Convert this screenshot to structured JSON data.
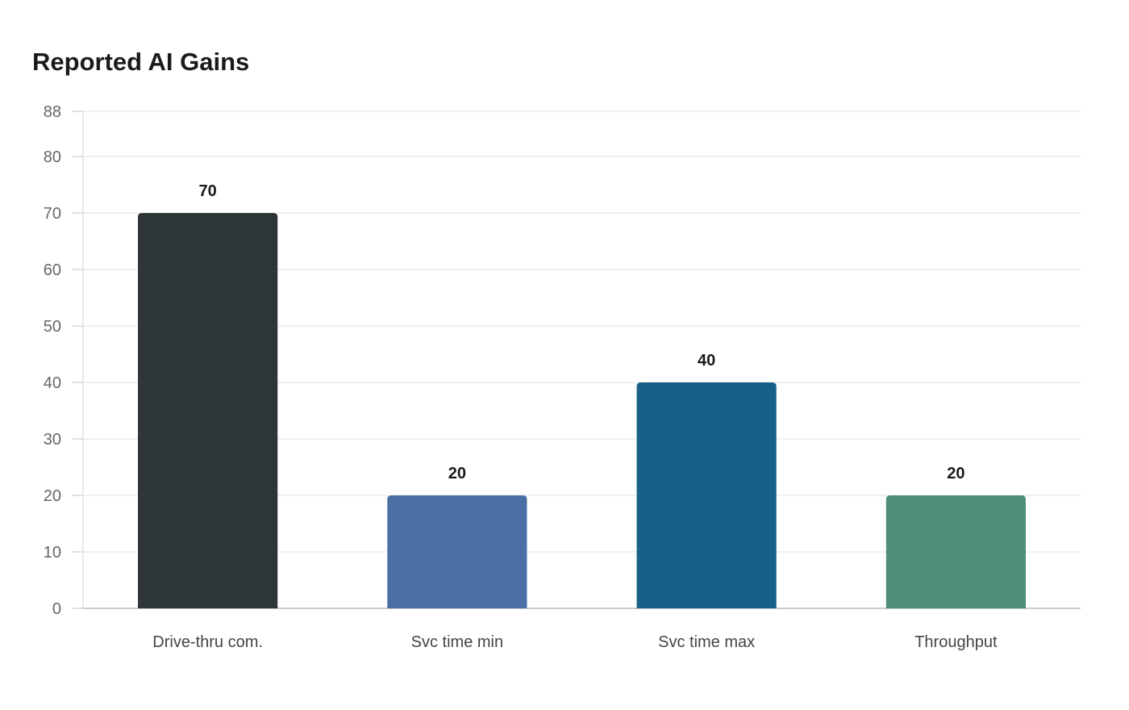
{
  "chart_data": {
    "type": "bar",
    "title": "Reported AI Gains",
    "categories": [
      "Drive-thru com.",
      "Svc time min",
      "Svc time max",
      "Throughput"
    ],
    "values": [
      70,
      20,
      40,
      20
    ],
    "colors": [
      "#2d3538",
      "#4a6fa5",
      "#176189",
      "#4e8e7b"
    ],
    "xlabel": "",
    "ylabel": "",
    "ylim": [
      0,
      88
    ],
    "yticks": [
      0,
      10,
      20,
      30,
      40,
      50,
      60,
      70,
      80,
      88
    ],
    "grid": true,
    "legend": "none"
  }
}
